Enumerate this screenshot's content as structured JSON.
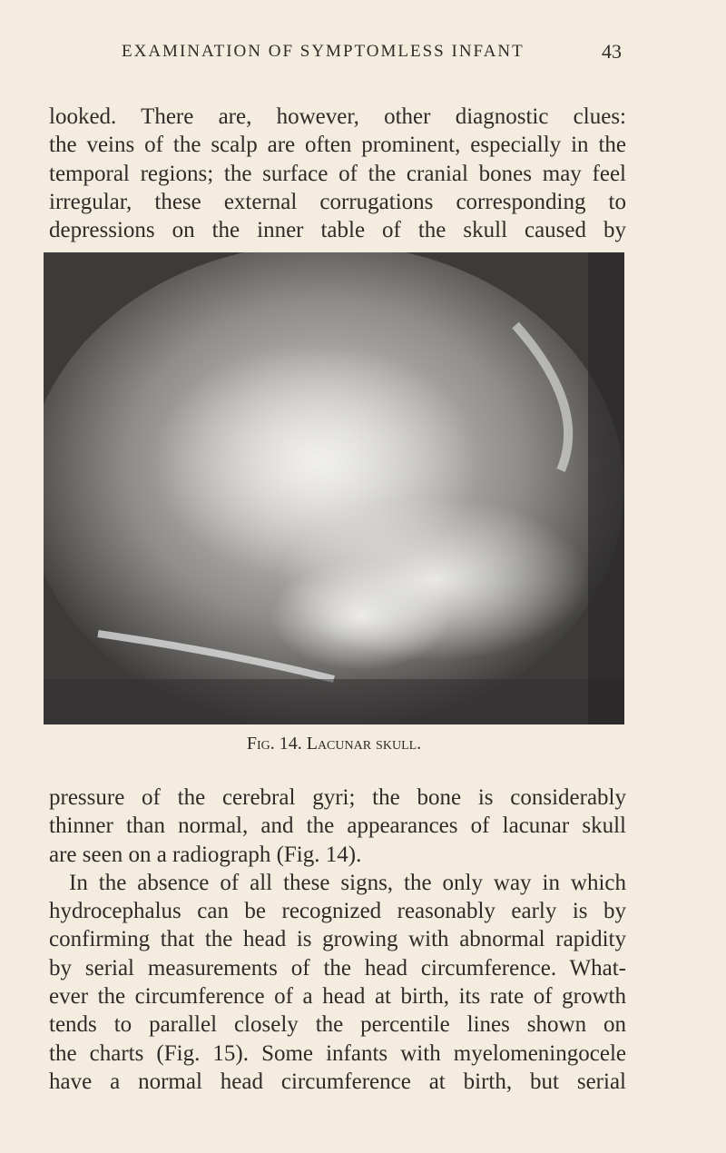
{
  "header": {
    "title": "EXAMINATION OF SYMPTOMLESS INFANT",
    "page_number": "43"
  },
  "paragraphs": [
    {
      "lines": [
        "looked. There are, however, other diagnostic clues:",
        "the veins of the scalp are often prominent, especially in the",
        "temporal regions; the surface of the cranial bones may feel",
        "irregular, these external corrugations corresponding to",
        "depressions on the inner table of the skull caused by"
      ]
    },
    {
      "lines": [
        "pressure of the cerebral gyri; the bone is considerably",
        "thinner than normal, and the appearances of lacunar skull",
        "are seen on a radiograph (Fig. 14)."
      ]
    },
    {
      "lines": [
        "In the absence of all these signs, the only way in which",
        "hydrocephalus can be recognized reasonably early is by",
        "confirming that the head is growing with abnormal rapidity",
        "by serial measurements of the head circumference. What-",
        "ever the circumference of a head at birth, its rate of growth",
        "tends to parallel closely the percentile lines shown on",
        "the charts (Fig. 15). Some infants with myelomeningocele",
        "have a normal head circumference at birth, but serial"
      ]
    }
  ],
  "figure": {
    "caption": "Fig. 14. Lacunar skull."
  }
}
